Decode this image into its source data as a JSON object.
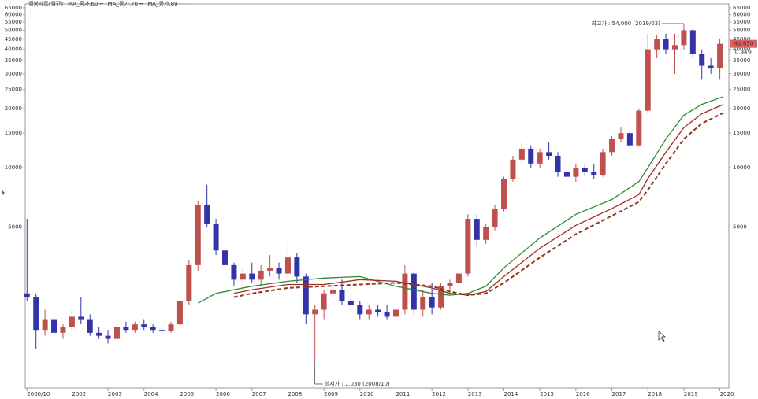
{
  "chart_data": {
    "type": "candlestick",
    "title": "월봉차트(월간)",
    "log_scale": true,
    "grid": false,
    "up_color": "#c0504d",
    "down_color": "#3333aa",
    "ylim": [
      760,
      68000
    ],
    "yticks": [
      65000,
      60000,
      55000,
      50000,
      45000,
      40000,
      35000,
      30000,
      25000,
      20000,
      15000,
      10000,
      5000
    ],
    "xlim": [
      2000.7,
      2020.25
    ],
    "xticks": [
      {
        "value": 2000.75,
        "label": "2000/10"
      },
      2002,
      2003,
      2004,
      2005,
      2006,
      2007,
      2008,
      2009,
      2010,
      2011,
      2012,
      2013,
      2014,
      2015,
      2016,
      2017,
      2018,
      2019,
      2020
    ],
    "candles": {
      "x": [
        2000.75,
        2001,
        2001.25,
        2001.5,
        2001.75,
        2002,
        2002.25,
        2002.5,
        2002.75,
        2003,
        2003.25,
        2003.5,
        2003.75,
        2004,
        2004.25,
        2004.5,
        2004.75,
        2005,
        2005.25,
        2005.5,
        2005.75,
        2006,
        2006.25,
        2006.5,
        2006.75,
        2007,
        2007.25,
        2007.5,
        2007.75,
        2008,
        2008.25,
        2008.5,
        2008.75,
        2009,
        2009.25,
        2009.5,
        2009.75,
        2010,
        2010.25,
        2010.5,
        2010.75,
        2011,
        2011.25,
        2011.5,
        2011.75,
        2012,
        2012.25,
        2012.5,
        2012.75,
        2013,
        2013.25,
        2013.5,
        2013.75,
        2014,
        2014.25,
        2014.5,
        2014.75,
        2015,
        2015.25,
        2015.5,
        2015.75,
        2016,
        2016.25,
        2016.5,
        2016.75,
        2017,
        2017.25,
        2017.5,
        2017.75,
        2018,
        2018.25,
        2018.5,
        2018.75,
        2019,
        2019.25,
        2019.5,
        2019.75,
        2020
      ],
      "open": [
        2300,
        2200,
        1500,
        1700,
        1450,
        1550,
        1750,
        1700,
        1450,
        1400,
        1350,
        1550,
        1500,
        1600,
        1550,
        1500,
        1480,
        1600,
        2100,
        3200,
        6500,
        5200,
        3800,
        3200,
        2700,
        2900,
        2700,
        3000,
        3100,
        2900,
        3500,
        2800,
        1800,
        1900,
        2300,
        2400,
        2100,
        2000,
        1800,
        1900,
        1850,
        1750,
        1900,
        2900,
        1900,
        2200,
        1950,
        2500,
        2600,
        2900,
        5500,
        4300,
        5000,
        6200,
        8800,
        11000,
        12500,
        10500,
        12000,
        11500,
        9500,
        9000,
        10000,
        9500,
        9200,
        12000,
        14000,
        15000,
        13000,
        19500,
        40000,
        45000,
        40000,
        42000,
        50000,
        38000,
        33000,
        32000
      ],
      "high": [
        5500,
        2300,
        1900,
        1800,
        1600,
        1900,
        2200,
        1800,
        1550,
        1500,
        1600,
        1650,
        1650,
        1700,
        1600,
        1560,
        1650,
        2200,
        3400,
        6800,
        8200,
        5500,
        4200,
        3300,
        3100,
        3300,
        3200,
        3600,
        3300,
        4200,
        3700,
        2900,
        2000,
        2400,
        2800,
        2700,
        2300,
        2100,
        2000,
        2000,
        2000,
        2000,
        3200,
        3000,
        2400,
        2600,
        2600,
        2700,
        3000,
        5800,
        5800,
        5200,
        6500,
        9000,
        11500,
        13500,
        13000,
        12500,
        13500,
        12000,
        10000,
        10500,
        10500,
        10500,
        12500,
        14500,
        16000,
        15500,
        20000,
        48000,
        47000,
        48000,
        48000,
        54000,
        51000,
        40000,
        36000,
        45000
      ],
      "low": [
        2100,
        1200,
        1400,
        1350,
        1350,
        1500,
        1600,
        1400,
        1350,
        1280,
        1300,
        1450,
        1450,
        1500,
        1450,
        1420,
        1450,
        1550,
        2000,
        3000,
        5000,
        3600,
        3000,
        2500,
        2400,
        2600,
        2500,
        2800,
        2700,
        2700,
        2600,
        1600,
        1030,
        1700,
        2100,
        2000,
        1900,
        1700,
        1700,
        1750,
        1700,
        1650,
        1800,
        1800,
        1750,
        1800,
        1900,
        2300,
        2500,
        2800,
        4000,
        4100,
        4800,
        6000,
        8500,
        10500,
        10000,
        10000,
        11000,
        9000,
        8500,
        8500,
        9000,
        8800,
        9000,
        11500,
        13500,
        12500,
        12800,
        19000,
        36000,
        38000,
        30000,
        40000,
        36000,
        28000,
        30000,
        28000
      ],
      "close": [
        2200,
        1500,
        1700,
        1450,
        1550,
        1750,
        1700,
        1450,
        1400,
        1350,
        1550,
        1500,
        1600,
        1550,
        1500,
        1480,
        1600,
        2100,
        3200,
        6500,
        5200,
        3800,
        3200,
        2700,
        2900,
        2700,
        3000,
        3100,
        2900,
        3500,
        2800,
        1800,
        1900,
        2300,
        2400,
        2100,
        2000,
        1800,
        1900,
        1850,
        1750,
        1900,
        2900,
        1900,
        2200,
        1950,
        2500,
        2600,
        2900,
        5500,
        4300,
        5000,
        6200,
        8800,
        11000,
        12500,
        10500,
        12000,
        11500,
        9500,
        9000,
        10000,
        9500,
        9200,
        12000,
        14000,
        15000,
        13000,
        19500,
        40000,
        45000,
        40000,
        42000,
        50000,
        38000,
        33000,
        32000,
        42650
      ]
    },
    "series": [
      {
        "name": "MA_종가,60",
        "color": "#2e8b2e",
        "style": "solid",
        "x": [
          2005.5,
          2006,
          2007,
          2008,
          2009,
          2010,
          2011,
          2012,
          2012.5,
          2013,
          2013.5,
          2014,
          2015,
          2016,
          2017,
          2017.75,
          2018,
          2018.5,
          2019,
          2019.5,
          2020.1
        ],
        "values": [
          2050,
          2300,
          2500,
          2650,
          2750,
          2800,
          2500,
          2300,
          2250,
          2300,
          2500,
          3100,
          4400,
          5800,
          6900,
          8500,
          10000,
          14000,
          18500,
          21000,
          23000
        ]
      },
      {
        "name": "MA_종가,70",
        "color": "#a52a2a",
        "style": "solid",
        "x": [
          2006.5,
          2007,
          2008,
          2009,
          2010,
          2011,
          2012,
          2012.5,
          2013,
          2013.5,
          2014,
          2015,
          2016,
          2017,
          2017.75,
          2018,
          2018.5,
          2019,
          2019.5,
          2020.1
        ],
        "values": [
          2300,
          2400,
          2550,
          2550,
          2700,
          2650,
          2450,
          2300,
          2250,
          2350,
          2800,
          3900,
          5100,
          6200,
          7300,
          8800,
          12000,
          16000,
          18800,
          21000
        ]
      },
      {
        "name": "MA_종가,80",
        "color": "#8b3a1a",
        "style": "dashed",
        "x": [
          2006.5,
          2007,
          2008,
          2009,
          2010,
          2011,
          2012,
          2012.5,
          2013,
          2013.5,
          2014,
          2015,
          2016,
          2017,
          2017.75,
          2018,
          2018.5,
          2019,
          2019.5,
          2020.1
        ],
        "values": [
          2200,
          2300,
          2450,
          2500,
          2550,
          2600,
          2500,
          2350,
          2250,
          2300,
          2600,
          3500,
          4600,
          5700,
          6700,
          7700,
          10500,
          14000,
          16800,
          19000
        ]
      }
    ],
    "annotations": [
      {
        "text": "최고가 : 54,000 (2019/03)",
        "x": 2019,
        "y": 54000,
        "color": "#c0504d",
        "side": "left"
      },
      {
        "text": "최저가 : 1,030 (2008/10)",
        "x": 2008.75,
        "y": 1030,
        "color": "#3333aa",
        "side": "right"
      }
    ],
    "last_price_label": "42,650",
    "change_label": "0.94%"
  }
}
